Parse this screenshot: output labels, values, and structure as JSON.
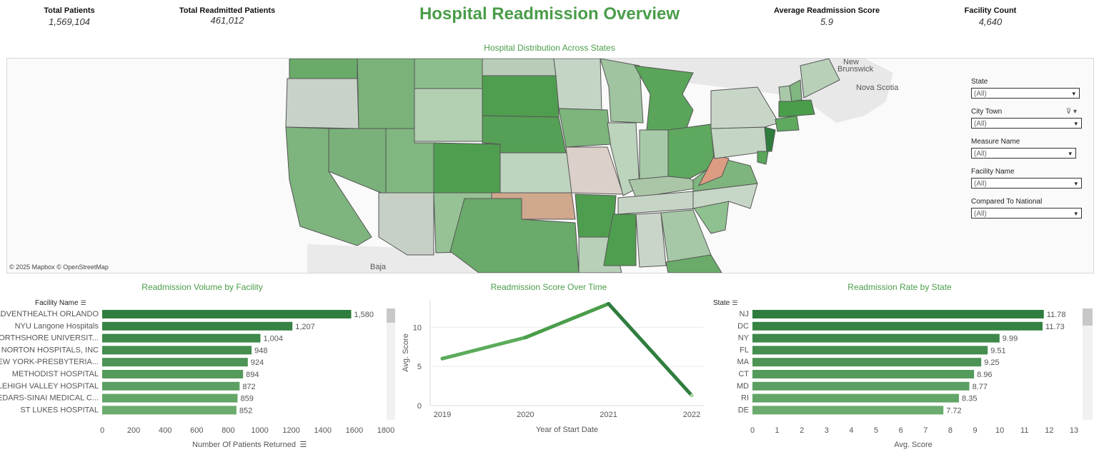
{
  "kpis": {
    "total_patients": {
      "label": "Total Patients",
      "value": "1,569,104"
    },
    "total_readmitted": {
      "label": "Total Readmitted Patients",
      "value": "461,012"
    },
    "avg_score": {
      "label": "Average Readmission Score",
      "value": "5.9"
    },
    "facility_count": {
      "label": "Facility Count",
      "value": "4,640"
    }
  },
  "title": "Hospital Readmission Overview",
  "map": {
    "title": "Hospital Distribution Across States",
    "attribution": "© 2025 Mapbox  © OpenStreetMap",
    "labels": [
      "New Brunswick",
      "Nova Scotia",
      "Baja"
    ],
    "label_new": "New",
    "label_brunswick": "Brunswick",
    "label_nova": "Nova Scotia",
    "label_baja": "Baja"
  },
  "filters": [
    {
      "label": "State",
      "value": "(All)"
    },
    {
      "label": "City Town",
      "value": "(All)"
    },
    {
      "label": "Measure Name",
      "value": "(All)"
    },
    {
      "label": "Facility Name",
      "value": "(All)"
    },
    {
      "label": "Compared To National",
      "value": "(All)"
    }
  ],
  "colors": {
    "accent": "#4a9d4a",
    "dark_green": "#2e7d3e",
    "mid_green": "#5aa85a",
    "light_green": "#8cc48c"
  },
  "chart_data": [
    {
      "type": "bar",
      "title": "Readmission Volume by Facility",
      "header": "Facility Name",
      "xlabel": "Number Of Patients Returned",
      "categories": [
        "ADVENTHEALTH ORLANDO",
        "NYU Langone Hospitals",
        "NORTHSHORE UNIVERSIT...",
        "NORTON HOSPITALS, INC",
        "NEW YORK-PRESBYTERIA...",
        "METHODIST HOSPITAL",
        "LEHIGH VALLEY HOSPITAL",
        "CEDARS-SINAI MEDICAL C...",
        "ST LUKES HOSPITAL"
      ],
      "values": [
        1580,
        1207,
        1004,
        948,
        924,
        894,
        872,
        859,
        852
      ],
      "value_labels": [
        "1,580",
        "1,207",
        "1,004",
        "948",
        "924",
        "894",
        "872",
        "859",
        "852"
      ],
      "xlim": [
        0,
        1800
      ],
      "xticks": [
        "0",
        "200",
        "400",
        "600",
        "800",
        "1000",
        "1200",
        "1400",
        "1600",
        "1800"
      ]
    },
    {
      "type": "line",
      "title": "Readmission Score Over Time",
      "xlabel": "Year of Start Date",
      "ylabel": "Avg. Score",
      "x": [
        "2019",
        "2020",
        "2021",
        "2022"
      ],
      "values": [
        6.0,
        8.7,
        13.0,
        1.3
      ],
      "ylim": [
        0,
        13.5
      ],
      "yticks": [
        "0",
        "5",
        "10"
      ]
    },
    {
      "type": "bar",
      "title": "Readmission Rate by State",
      "header": "State",
      "xlabel": "Avg. Score",
      "categories": [
        "NJ",
        "DC",
        "NY",
        "FL",
        "MA",
        "CT",
        "MD",
        "RI",
        "DE"
      ],
      "values": [
        11.78,
        11.73,
        9.99,
        9.51,
        9.25,
        8.96,
        8.77,
        8.35,
        7.72
      ],
      "value_labels": [
        "11.78",
        "11.73",
        "9.99",
        "9.51",
        "9.25",
        "8.96",
        "8.77",
        "8.35",
        "7.72"
      ],
      "xlim": [
        0,
        13
      ],
      "xticks": [
        "0",
        "1",
        "2",
        "3",
        "4",
        "5",
        "6",
        "7",
        "8",
        "9",
        "10",
        "11",
        "12",
        "13"
      ]
    }
  ]
}
